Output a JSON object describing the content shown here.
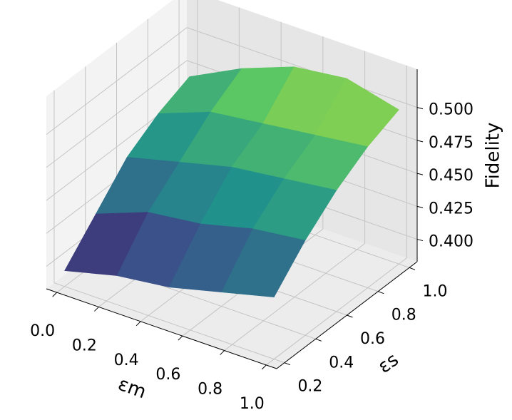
{
  "chart_data": {
    "type": "surface3d",
    "xlabel": "εm",
    "ylabel": "εs",
    "zlabel": "Fidelity",
    "x": [
      0,
      0.25,
      0.5,
      0.75,
      1.0
    ],
    "y": [
      0.2,
      0.4,
      0.6,
      0.8,
      1.0
    ],
    "z": [
      [
        0.395,
        0.405,
        0.41,
        0.42,
        0.43
      ],
      [
        0.42,
        0.435,
        0.44,
        0.45,
        0.455
      ],
      [
        0.445,
        0.455,
        0.465,
        0.47,
        0.475
      ],
      [
        0.46,
        0.475,
        0.48,
        0.485,
        0.49
      ],
      [
        0.47,
        0.49,
        0.505,
        0.51,
        0.5
      ]
    ],
    "xlim": [
      -0.05,
      1.05
    ],
    "ylim": [
      0.15,
      1.05
    ],
    "zlim": [
      0.383,
      0.529
    ],
    "xticks": [
      {
        "value": 0,
        "label": "0.0"
      },
      0.2,
      0.4,
      0.6,
      0.8,
      {
        "value": 1,
        "label": "1.0"
      }
    ],
    "yticks": [
      0.2,
      0.4,
      0.6,
      0.8,
      {
        "value": 1,
        "label": "1.0"
      }
    ],
    "zticks": [
      {
        "value": 0.4,
        "label": "0.400"
      },
      0.425,
      {
        "value": 0.45,
        "label": "0.450"
      },
      0.475,
      {
        "value": 0.5,
        "label": "0.500"
      }
    ],
    "cmap": "viridis",
    "grid": true
  }
}
